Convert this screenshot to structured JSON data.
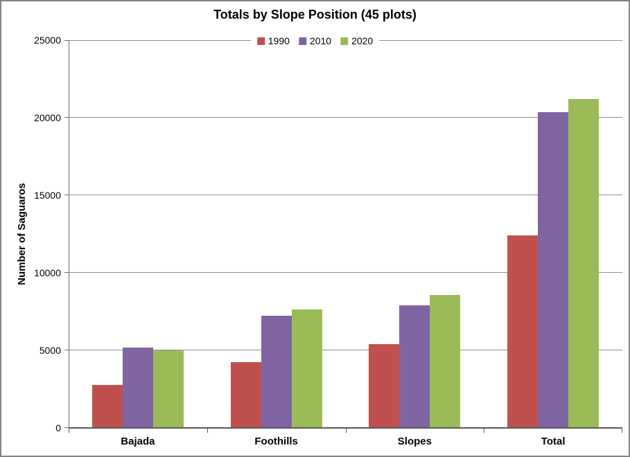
{
  "chart_data": {
    "type": "bar",
    "title": "Totals by Slope Position (45 plots)",
    "ylabel": "Number of Saguaros",
    "xlabel": "",
    "categories": [
      "Bajada",
      "Foothills",
      "Slopes",
      "Total"
    ],
    "series": [
      {
        "name": "1990",
        "color": "#C0504D",
        "values": [
          2750,
          4250,
          5400,
          12400
        ]
      },
      {
        "name": "2010",
        "color": "#8064A2",
        "values": [
          5200,
          7250,
          7900,
          20350
        ]
      },
      {
        "name": "2020",
        "color": "#9BBB59",
        "values": [
          5000,
          7650,
          8550,
          21200
        ]
      }
    ],
    "ylim": [
      0,
      25000
    ],
    "y_ticks": [
      0,
      5000,
      10000,
      15000,
      20000,
      25000
    ],
    "grid": true,
    "legend_position": "top-center",
    "colors": {
      "gridline": "#8C8C8C",
      "axis": "#696969",
      "baseline": "#595959",
      "text": "#000000",
      "chart_border": "#848484",
      "background": "#FFFFFF"
    }
  }
}
